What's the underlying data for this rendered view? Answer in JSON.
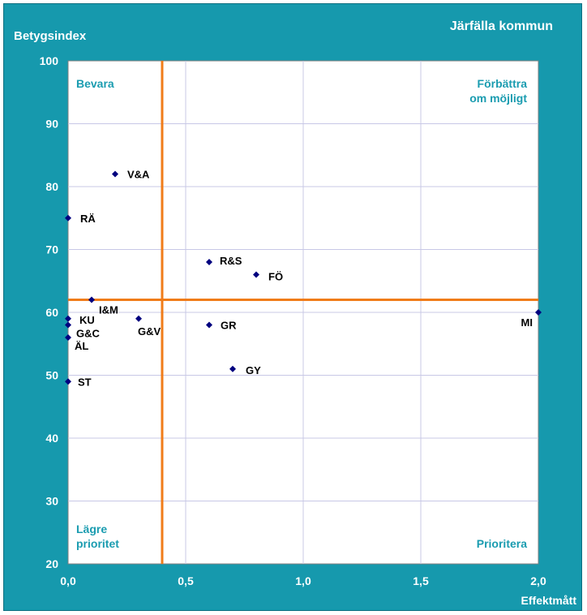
{
  "chart_data": {
    "type": "scatter",
    "title": "Järfälla kommun",
    "ylabel": "Betygsindex",
    "xlabel": "Effektmått",
    "xlim": [
      0,
      2.0
    ],
    "ylim": [
      20,
      100
    ],
    "x_ticks": [
      "0,0",
      "0,5",
      "1,0",
      "1,5",
      "2,0"
    ],
    "x_tick_values": [
      0,
      0.5,
      1.0,
      1.5,
      2.0
    ],
    "y_ticks": [
      "20",
      "30",
      "40",
      "50",
      "60",
      "70",
      "80",
      "90",
      "100"
    ],
    "y_tick_values": [
      20,
      30,
      40,
      50,
      60,
      70,
      80,
      90,
      100
    ],
    "grid": true,
    "reference_lines": {
      "x": 0.4,
      "y": 62,
      "color": "#f07c1a"
    },
    "marker_color": "#00007f",
    "quadrant_labels": {
      "top_left": [
        "Bevara"
      ],
      "top_right": [
        "Förbättra",
        "om möjligt"
      ],
      "bottom_left": [
        "Lägre",
        "prioritet"
      ],
      "bottom_right": [
        "Prioritera"
      ]
    },
    "points": [
      {
        "label": "V&A",
        "x": 0.2,
        "y": 82
      },
      {
        "label": "RÄ",
        "x": 0.0,
        "y": 75
      },
      {
        "label": "R&S",
        "x": 0.6,
        "y": 68
      },
      {
        "label": "FÖ",
        "x": 0.8,
        "y": 66
      },
      {
        "label": "I&M",
        "x": 0.1,
        "y": 62
      },
      {
        "label": "KU",
        "x": 0.0,
        "y": 59
      },
      {
        "label": "G&C",
        "x": 0.0,
        "y": 58
      },
      {
        "label": "ÄL",
        "x": 0.0,
        "y": 56
      },
      {
        "label": "G&V",
        "x": 0.3,
        "y": 59
      },
      {
        "label": "GR",
        "x": 0.6,
        "y": 58
      },
      {
        "label": "GY",
        "x": 0.7,
        "y": 51
      },
      {
        "label": "ST",
        "x": 0.0,
        "y": 49
      },
      {
        "label": "MI",
        "x": 2.0,
        "y": 60
      }
    ]
  }
}
